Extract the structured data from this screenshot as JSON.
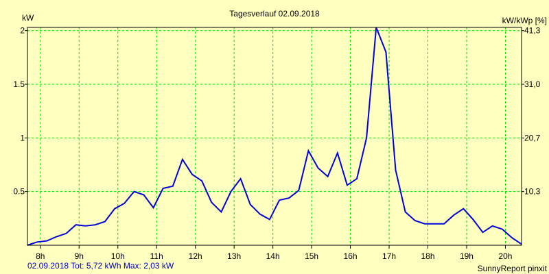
{
  "colors": {
    "background": "#ffffc0",
    "plot_background": "#ffffc0",
    "grid": "#00dd00",
    "line": "#0000dd",
    "axis": "#000000",
    "footer_left_text": "#0000c0"
  },
  "footer": {
    "left": "02.09.2018 Tot: 5,72 kWh Max: 2,03 kW",
    "right": "SunnyReport pinxit"
  },
  "chart_data": {
    "type": "line",
    "title": "Tagesverlauf 02.09.2018",
    "ylabel": "kW",
    "ylabel_right": "kW/kWp [%]",
    "grid": true,
    "xlim": [
      7.667,
      20.417
    ],
    "ylim": [
      0,
      2.03
    ],
    "x_ticks": [
      8,
      9,
      10,
      11,
      12,
      13,
      14,
      15,
      16,
      17,
      18,
      19,
      20
    ],
    "x_tick_labels": [
      "8h",
      "9h",
      "10h",
      "11h",
      "12h",
      "13h",
      "14h",
      "15h",
      "16h",
      "17h",
      "18h",
      "19h",
      "20h"
    ],
    "y_ticks_left": [
      {
        "value": 0.5,
        "label": "0.5"
      },
      {
        "value": 1.0,
        "label": "1"
      },
      {
        "value": 1.5,
        "label": "1.5"
      },
      {
        "value": 2.0,
        "label": "2"
      }
    ],
    "y_ticks_right": [
      {
        "value": 0.5,
        "label": "10,3"
      },
      {
        "value": 1.0,
        "label": "20,7"
      },
      {
        "value": 1.5,
        "label": "31,0"
      },
      {
        "value": 2.0,
        "label": "41,3"
      }
    ],
    "series": [
      {
        "x": [
          7.667,
          7.917,
          8.167,
          8.417,
          8.667,
          8.917,
          9.167,
          9.417,
          9.667,
          9.917,
          10.167,
          10.417,
          10.667,
          10.917,
          11.167,
          11.417,
          11.667,
          11.917,
          12.167,
          12.417,
          12.667,
          12.917,
          13.167,
          13.417,
          13.667,
          13.917,
          14.167,
          14.417,
          14.667,
          14.917,
          15.167,
          15.417,
          15.667,
          15.917,
          16.167,
          16.417,
          16.667,
          16.917,
          17.167,
          17.417,
          17.667,
          17.917,
          18.167,
          18.417,
          18.667,
          18.917,
          19.167,
          19.417,
          19.667,
          19.917,
          20.167,
          20.417
        ],
        "values": [
          0.0,
          0.03,
          0.04,
          0.08,
          0.11,
          0.19,
          0.18,
          0.19,
          0.22,
          0.34,
          0.39,
          0.5,
          0.47,
          0.35,
          0.53,
          0.55,
          0.8,
          0.66,
          0.6,
          0.4,
          0.31,
          0.5,
          0.62,
          0.38,
          0.29,
          0.24,
          0.42,
          0.44,
          0.51,
          0.88,
          0.72,
          0.64,
          0.86,
          0.56,
          0.62,
          1.0,
          2.03,
          1.8,
          0.7,
          0.31,
          0.23,
          0.2,
          0.2,
          0.2,
          0.28,
          0.34,
          0.24,
          0.12,
          0.18,
          0.15,
          0.07,
          0.01
        ]
      }
    ]
  }
}
